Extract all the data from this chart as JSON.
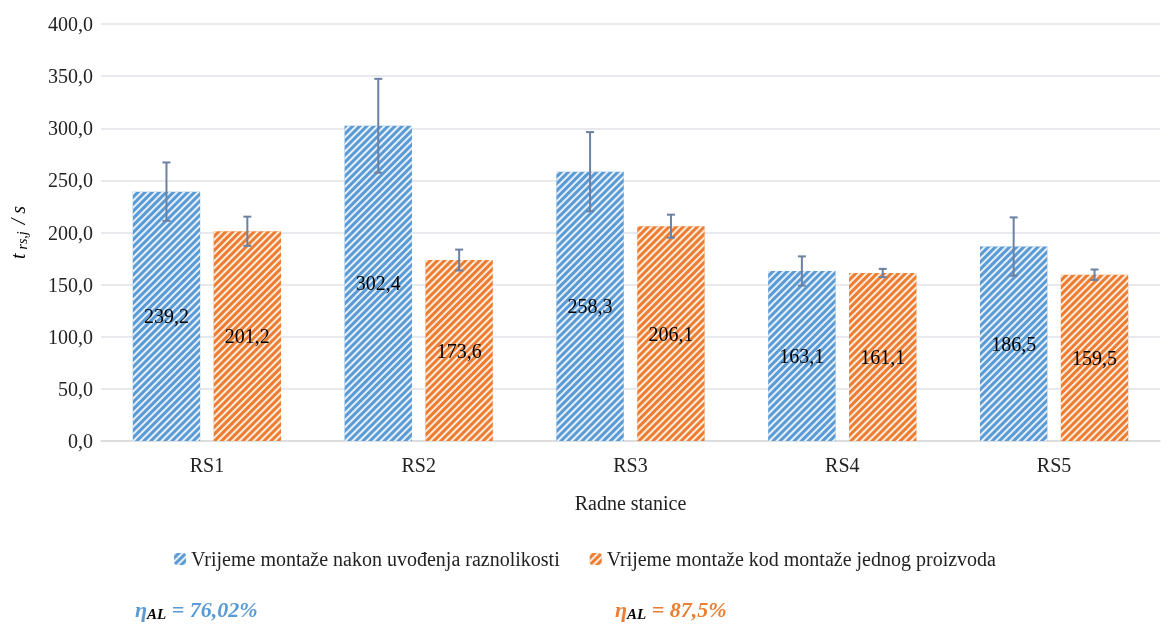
{
  "chart_data": {
    "type": "bar",
    "xlabel": "Radne stanice",
    "ylabel": "t$_{rs,j}$ / s",
    "categories": [
      "RS1",
      "RS2",
      "RS3",
      "RS4",
      "RS5"
    ],
    "series": [
      {
        "name": "Vrijeme montaže nakon uvođenja raznolikosti",
        "color": "#5b9bd5",
        "values": [
          239.2,
          302.4,
          258.3,
          163.1,
          186.5
        ],
        "value_labels": [
          "239,2",
          "302,4",
          "258,3",
          "163,1",
          "186,5"
        ],
        "errors": [
          28,
          45,
          38,
          14,
          28
        ]
      },
      {
        "name": "Vrijeme montaže kod montaže jednog proizvoda",
        "color": "#ed7d31",
        "values": [
          201.2,
          173.6,
          206.1,
          161.1,
          159.5
        ],
        "value_labels": [
          "201,2",
          "173,6",
          "206,1",
          "161,1",
          "159,5"
        ],
        "errors": [
          14,
          10,
          11,
          4,
          5
        ]
      }
    ],
    "ylim": [
      0,
      400
    ],
    "yticks": [
      {
        "value": 0,
        "label": "0,0"
      },
      {
        "value": 50,
        "label": "50,0"
      },
      {
        "value": 100,
        "label": "100,0"
      },
      {
        "value": 150,
        "label": "150,0"
      },
      {
        "value": 200,
        "label": "200,0"
      },
      {
        "value": 250,
        "label": "250,0"
      },
      {
        "value": 300,
        "label": "300,0"
      },
      {
        "value": 350,
        "label": "350,0"
      },
      {
        "value": 400,
        "label": "400,0"
      }
    ],
    "grid": "y",
    "legend": "bottom",
    "annotations": [
      "η$_{AL}$ = 76,02%",
      "η$_{AL}$ = 87,5%"
    ]
  }
}
